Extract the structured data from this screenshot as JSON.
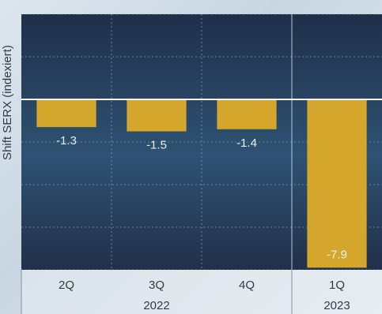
{
  "chart_data": {
    "type": "bar",
    "categories": [
      "2Q",
      "3Q",
      "4Q",
      "1Q"
    ],
    "groups": [
      {
        "label": "2022",
        "categories": [
          "2Q",
          "3Q",
          "4Q"
        ]
      },
      {
        "label": "2023",
        "categories": [
          "1Q"
        ]
      }
    ],
    "values": [
      -1.3,
      -1.5,
      -1.4,
      -7.9
    ],
    "data_labels": [
      "-1.3",
      "-1.5",
      "-1.4",
      "-7.9"
    ],
    "ylabel": "Shift SERX (indexiert)",
    "ylim": [
      -8,
      4
    ],
    "grid": true,
    "colors": {
      "bar": "#d4a72c",
      "plot_top": "#202f4a",
      "plot_mid": "#2e5273",
      "plot_bottom": "#22304a",
      "grid": "#9fb3c8",
      "zero_line": "#ffffff"
    }
  }
}
